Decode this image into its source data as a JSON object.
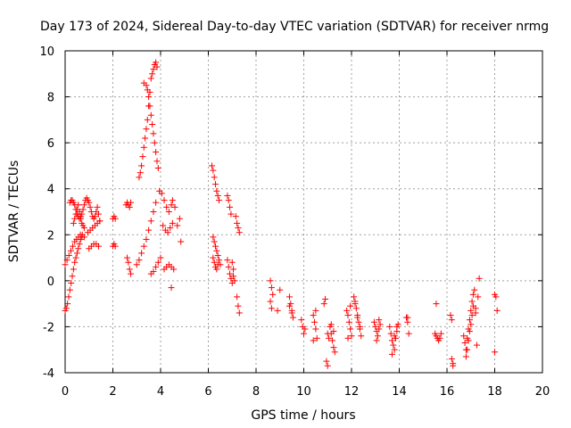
{
  "chart_data": {
    "type": "scatter",
    "title": "Day 173 of 2024, Sidereal Day-to-day VTEC variation (SDTVAR) for receiver nrmg",
    "xlabel": "GPS time / hours",
    "ylabel": "SDTVAR / TECUs",
    "xlim": [
      0,
      20
    ],
    "ylim": [
      -4,
      10
    ],
    "xticks": [
      "0",
      "2",
      "4",
      "6",
      "8",
      "10",
      "12",
      "14",
      "16",
      "18",
      "20"
    ],
    "yticks": [
      "-4",
      "-2",
      "0",
      "2",
      "4",
      "6",
      "8",
      "10"
    ],
    "grid": true,
    "marker": "+",
    "color": "#ff0000",
    "series": [
      {
        "name": "SDTVAR",
        "x": [
          0.0,
          0.05,
          0.1,
          0.15,
          0.2,
          0.25,
          0.3,
          0.35,
          0.4,
          0.45,
          0.5,
          0.55,
          0.6,
          0.65,
          0.7,
          0.0,
          0.08,
          0.16,
          0.24,
          0.32,
          0.4,
          0.48,
          0.56,
          0.64,
          0.72,
          0.8,
          0.2,
          0.25,
          0.3,
          0.35,
          0.4,
          0.45,
          0.5,
          0.55,
          0.6,
          0.65,
          0.7,
          0.75,
          0.8,
          0.85,
          0.35,
          0.4,
          0.45,
          0.5,
          0.55,
          0.6,
          0.65,
          0.7,
          0.75,
          0.8,
          0.9,
          0.95,
          1.0,
          1.05,
          1.1,
          1.15,
          1.2,
          1.25,
          1.3,
          1.35,
          1.4,
          1.45,
          0.95,
          1.05,
          1.15,
          1.25,
          1.35,
          1.45,
          1.0,
          1.1,
          1.2,
          1.3,
          1.4,
          2.0,
          2.05,
          2.1,
          2.0,
          2.05,
          2.1,
          2.55,
          2.6,
          2.65,
          2.7,
          2.75,
          2.6,
          2.65,
          2.7,
          2.75,
          3.1,
          3.15,
          3.2,
          3.25,
          3.3,
          3.35,
          3.4,
          3.45,
          3.5,
          3.55,
          3.3,
          3.4,
          3.45,
          3.5,
          3.55,
          3.6,
          3.65,
          3.7,
          3.75,
          3.8,
          3.85,
          3.9,
          3.6,
          3.65,
          3.7,
          3.75,
          3.8,
          3.85,
          3.0,
          3.1,
          3.2,
          3.3,
          3.4,
          3.5,
          3.6,
          3.7,
          3.8,
          3.6,
          3.7,
          3.8,
          3.9,
          4.0,
          3.95,
          4.05,
          4.15,
          4.25,
          4.35,
          4.45,
          4.1,
          4.2,
          4.3,
          4.4,
          4.5,
          4.15,
          4.25,
          4.35,
          4.45,
          4.55,
          4.5,
          4.6,
          4.7,
          4.8,
          4.85,
          4.45,
          6.15,
          6.2,
          6.25,
          6.3,
          6.35,
          6.4,
          6.45,
          6.2,
          6.25,
          6.3,
          6.35,
          6.4,
          6.45,
          6.5,
          6.2,
          6.25,
          6.3,
          6.35,
          6.4,
          6.8,
          6.85,
          6.9,
          6.95,
          7.0,
          7.05,
          7.1,
          6.8,
          6.85,
          6.9,
          6.95,
          7.0,
          7.05,
          7.15,
          7.2,
          7.25,
          7.3,
          7.2,
          7.25,
          7.3,
          8.6,
          8.65,
          8.7,
          8.6,
          8.65,
          8.9,
          9.0,
          9.4,
          9.45,
          9.5,
          9.55,
          9.4,
          9.5,
          9.9,
          9.95,
          10.0,
          10.05,
          10.4,
          10.45,
          10.5,
          10.55,
          10.4,
          10.5,
          10.85,
          10.9,
          10.95,
          11.0,
          11.0,
          11.05,
          11.1,
          11.15,
          11.2,
          11.25,
          11.3,
          11.15,
          11.25,
          11.8,
          11.85,
          11.9,
          11.95,
          12.0,
          11.85,
          11.95,
          12.1,
          12.15,
          12.2,
          12.25,
          12.3,
          12.35,
          12.4,
          12.15,
          12.25,
          12.35,
          12.95,
          13.0,
          13.05,
          13.1,
          13.15,
          13.2,
          13.05,
          13.15,
          13.6,
          13.65,
          13.7,
          13.75,
          13.8,
          13.85,
          13.9,
          13.95,
          13.7,
          13.8,
          13.9,
          14.3,
          14.35,
          14.4,
          14.35,
          15.5,
          15.55,
          15.6,
          15.65,
          15.7,
          15.75,
          15.55,
          16.15,
          16.2,
          16.25,
          16.2,
          16.25,
          16.7,
          16.75,
          16.8,
          16.85,
          16.9,
          16.95,
          17.0,
          17.05,
          17.1,
          17.15,
          16.8,
          16.85,
          16.9,
          16.95,
          17.0,
          17.05,
          17.1,
          17.2,
          17.25,
          17.3,
          17.35,
          17.2,
          18.0,
          18.05,
          18.1,
          18.0
        ],
        "y": [
          -1.3,
          -1.2,
          -1.0,
          -0.7,
          -0.4,
          -0.1,
          0.2,
          0.5,
          0.8,
          1.0,
          1.2,
          1.4,
          1.6,
          1.8,
          1.9,
          0.7,
          0.9,
          1.1,
          1.3,
          1.5,
          1.7,
          1.8,
          1.9,
          2.0,
          2.0,
          1.9,
          3.4,
          3.5,
          3.5,
          3.4,
          3.3,
          3.1,
          2.9,
          2.8,
          2.7,
          2.8,
          2.9,
          3.1,
          3.3,
          3.5,
          2.5,
          2.7,
          2.9,
          3.1,
          3.3,
          3.0,
          2.7,
          2.5,
          2.4,
          2.3,
          3.6,
          3.5,
          3.4,
          3.2,
          3.0,
          2.8,
          2.7,
          2.8,
          3.0,
          3.2,
          2.9,
          2.6,
          2.1,
          2.2,
          2.3,
          2.4,
          2.5,
          2.6,
          1.4,
          1.5,
          1.6,
          1.6,
          1.5,
          2.7,
          2.8,
          2.7,
          1.5,
          1.6,
          1.5,
          3.3,
          3.4,
          3.3,
          3.2,
          3.4,
          1.0,
          0.8,
          0.5,
          0.3,
          4.5,
          4.7,
          5.0,
          5.4,
          5.8,
          6.2,
          6.6,
          7.0,
          7.6,
          8.2,
          8.6,
          8.5,
          8.3,
          8.0,
          7.6,
          7.2,
          6.8,
          6.4,
          6.0,
          5.6,
          5.2,
          4.9,
          8.8,
          9.0,
          9.2,
          9.4,
          9.5,
          9.3,
          0.7,
          0.9,
          1.2,
          1.5,
          1.8,
          2.2,
          2.6,
          3.0,
          3.4,
          0.3,
          0.4,
          0.6,
          0.8,
          1.0,
          3.9,
          3.8,
          3.5,
          3.2,
          3.0,
          3.3,
          2.4,
          2.2,
          2.1,
          2.3,
          2.5,
          0.5,
          0.6,
          0.7,
          0.6,
          0.5,
          3.5,
          3.2,
          2.4,
          2.7,
          1.7,
          -0.3,
          5.0,
          4.8,
          4.5,
          4.2,
          3.9,
          3.7,
          3.5,
          1.9,
          1.7,
          1.5,
          1.3,
          1.1,
          0.9,
          0.7,
          1.0,
          0.8,
          0.6,
          0.5,
          0.7,
          3.7,
          3.5,
          3.2,
          2.9,
          0.8,
          0.5,
          0.0,
          0.9,
          0.6,
          0.3,
          0.1,
          -0.1,
          0.2,
          2.8,
          2.5,
          2.3,
          2.1,
          -0.7,
          -1.1,
          -1.4,
          0.0,
          -0.3,
          -0.6,
          -0.9,
          -1.2,
          -1.3,
          -0.4,
          -0.7,
          -1.0,
          -1.3,
          -1.6,
          -1.1,
          -1.4,
          -1.7,
          -2.0,
          -2.3,
          -2.1,
          -1.5,
          -1.8,
          -2.1,
          -2.5,
          -2.6,
          -1.3,
          -1.0,
          -0.8,
          -3.5,
          -3.7,
          -2.3,
          -2.5,
          -2.0,
          -2.3,
          -2.6,
          -2.9,
          -3.1,
          -1.9,
          -2.2,
          -1.3,
          -1.5,
          -1.8,
          -2.1,
          -2.4,
          -2.5,
          -1.1,
          -0.7,
          -0.9,
          -1.2,
          -1.5,
          -1.8,
          -2.1,
          -2.4,
          -1.0,
          -1.6,
          -2.0,
          -1.8,
          -2.0,
          -2.2,
          -2.4,
          -2.1,
          -1.9,
          -2.6,
          -1.7,
          -2.0,
          -2.3,
          -2.6,
          -2.8,
          -3.0,
          -2.5,
          -2.2,
          -1.9,
          -3.2,
          -2.4,
          -2.0,
          -1.6,
          -1.8,
          -2.3,
          -1.6,
          -2.3,
          -2.4,
          -2.5,
          -2.6,
          -2.5,
          -2.3,
          -1.0,
          -1.5,
          -1.7,
          -3.6,
          -3.4,
          -3.7,
          -2.4,
          -2.7,
          -3.0,
          -2.5,
          -2.1,
          -1.7,
          -1.3,
          -0.9,
          -0.6,
          -0.4,
          -3.3,
          -3.0,
          -2.6,
          -2.2,
          -1.9,
          -1.5,
          -1.1,
          -1.4,
          -2.8,
          -0.7,
          0.1,
          -1.2,
          -0.6,
          -0.7,
          -1.3,
          -3.1
        ]
      }
    ]
  }
}
